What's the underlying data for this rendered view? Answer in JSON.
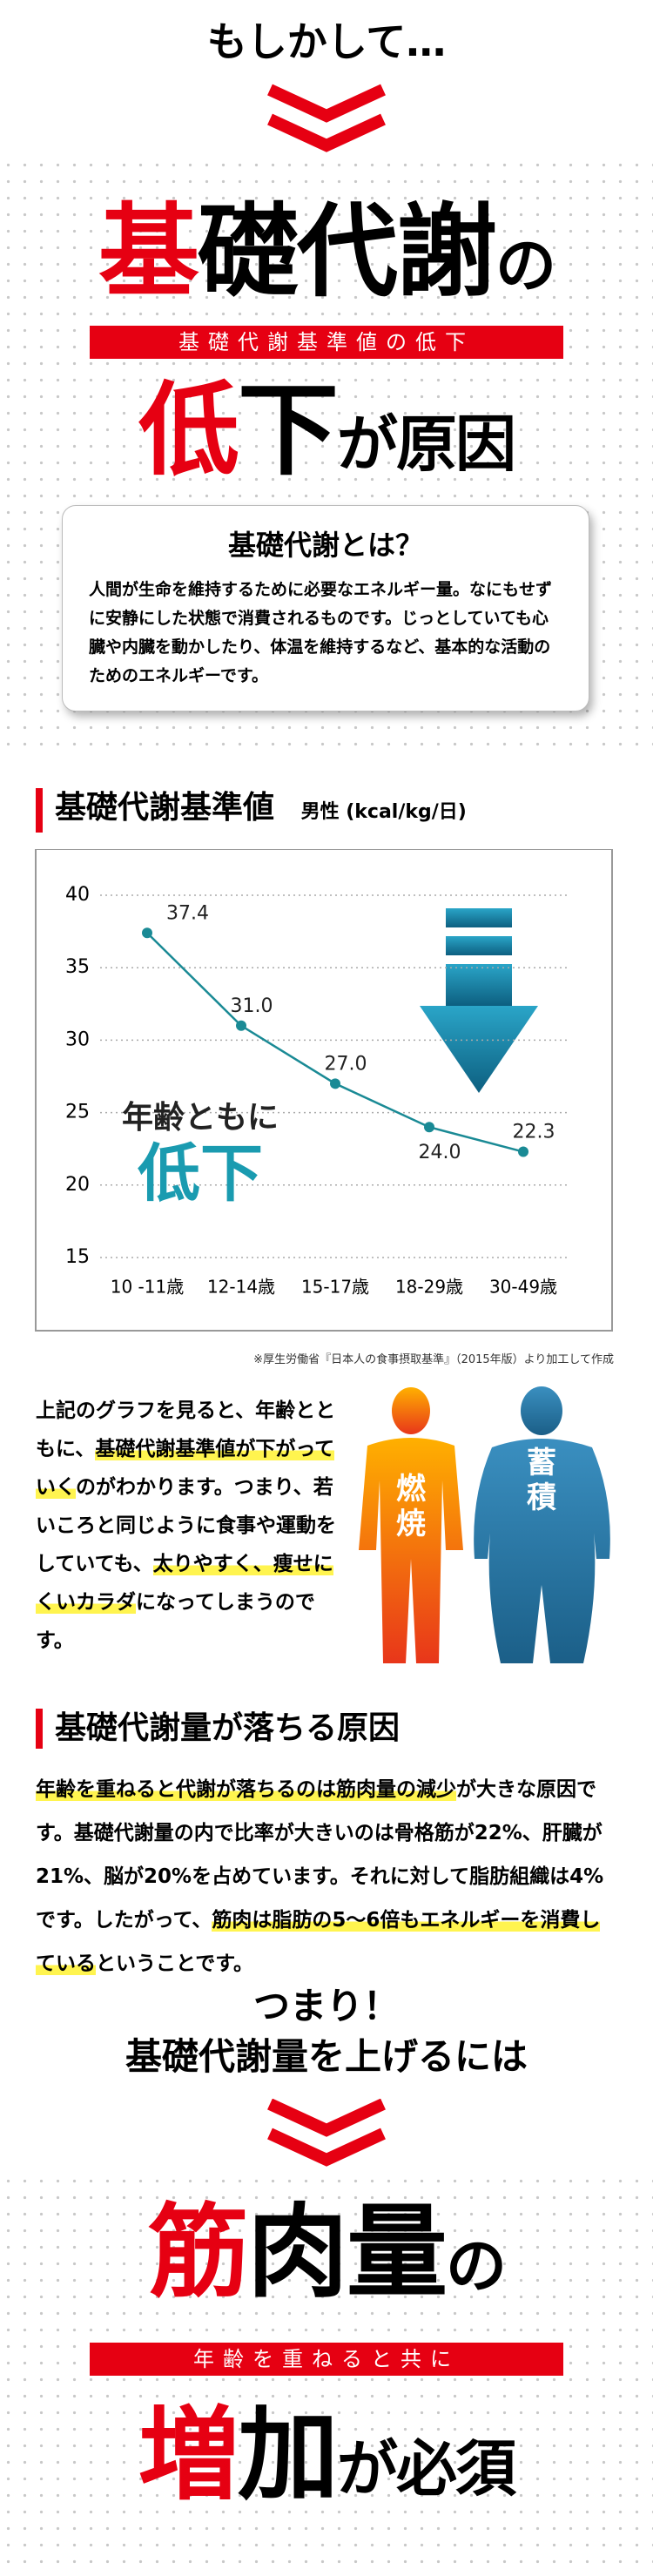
{
  "intro": "もしかして…",
  "headline1": {
    "segments": [
      "基",
      "礎代謝",
      "の"
    ],
    "banner": "基礎代謝基準値の低下",
    "segments2": [
      "低",
      "下",
      "が原因"
    ]
  },
  "definition": {
    "title": "基礎代謝とは？",
    "text": "人間が生命を維持するために必要なエネルギー量。なにもせずに安静にした状態で消費されるものです。じっとしていても心臓や内臓を動かしたり、体温を維持するなど、基本的な活動のためのエネルギーです。"
  },
  "chart_data": {
    "type": "line",
    "title": "基礎代謝基準値",
    "subtitle": "男性 (kcal/kg/日)",
    "categories": [
      "10 -11歳",
      "12-14歳",
      "15-17歳",
      "18-29歳",
      "30-49歳"
    ],
    "values": [
      37.4,
      31.0,
      27.0,
      24.0,
      22.3
    ],
    "value_labels": [
      "37.4",
      "31.0",
      "27.0",
      "24.0",
      "22.3"
    ],
    "ylim": [
      15,
      40
    ],
    "yticks": [
      15,
      20,
      25,
      30,
      35,
      40
    ],
    "grid": true,
    "color": "#1a8a95",
    "annotation": "年齢ともに",
    "annotation2": "低下",
    "source": "※厚生労働省『日本人の食事摂取基準』（2015年版）より加工して作成"
  },
  "explanation": {
    "segments": [
      {
        "text": "上記のグラフを見ると、年齢とともに、",
        "highlight": false
      },
      {
        "text": "基礎代謝基準値が下がっていく",
        "highlight": true
      },
      {
        "text": "のがわかります。つまり、若いころと同じように食事や運動をしていても、",
        "highlight": false
      },
      {
        "text": "太りやすく、痩せにくいカラダ",
        "highlight": true
      },
      {
        "text": "になってしまうのです。",
        "highlight": false
      }
    ],
    "figures": [
      "燃焼",
      "蓄積"
    ]
  },
  "cause": {
    "title": "基礎代謝量が落ちる原因",
    "segments": [
      {
        "text": "年齢を重ねると代謝が落ちるのは筋肉量の減少",
        "highlight": true
      },
      {
        "text": "が大きな原因です。基礎代謝量の内で比率が大きいのは骨格筋が22%、肝臓が21%、脳が20%を占めています。それに対して脂肪組織は4%です。したがって、",
        "highlight": false
      },
      {
        "text": "筋肉は脂肪の5〜6倍もエネルギーを消費している",
        "highlight": true
      },
      {
        "text": "ということです。",
        "highlight": false
      }
    ]
  },
  "conclusion": {
    "lead": "つまり！",
    "lead2": "基礎代謝量を上げるには",
    "segments": [
      "筋",
      "肉量",
      "の"
    ],
    "banner": "年齢を重ねると共に",
    "segments2": [
      "増",
      "加",
      "が必須"
    ]
  }
}
